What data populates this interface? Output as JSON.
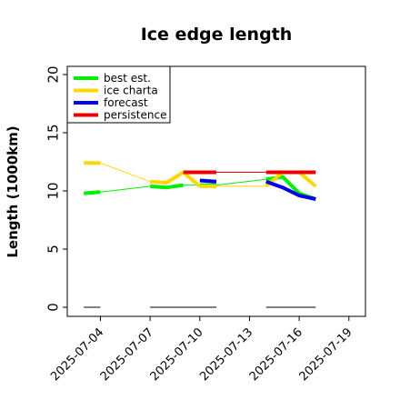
{
  "chart_data": {
    "type": "line",
    "title": "Ice edge length",
    "xlabel": "",
    "ylabel": "Length (1000km)",
    "ylim": [
      0,
      20
    ],
    "xlim": [
      "2025-07-02",
      "2025-07-20"
    ],
    "yticks": [
      "0",
      "5",
      "10",
      "15",
      "20"
    ],
    "xticks": [
      {
        "date": "2025-07-04",
        "label": "2025-07-04",
        "color": "#000000"
      },
      {
        "date": "2025-07-07",
        "label": "2025-07-07",
        "color": "#000000"
      },
      {
        "date": "2025-07-10",
        "label": "2025-07-10",
        "color": "#228b22"
      },
      {
        "date": "2025-07-13",
        "label": "2025-07-13",
        "color": "#000000"
      },
      {
        "date": "2025-07-16",
        "label": "2025-07-16",
        "color": "#000000"
      },
      {
        "date": "2025-07-19",
        "label": "2025-07-19",
        "color": "#000000"
      }
    ],
    "legend_position": "top-left",
    "grid": false,
    "series": [
      {
        "name": "best est.",
        "color": "#00ee00",
        "segments": [
          {
            "x": [
              "2025-07-03",
              "2025-07-04"
            ],
            "y": [
              9.8,
              9.9
            ],
            "width": "thick"
          },
          {
            "x": [
              "2025-07-04",
              "2025-07-07"
            ],
            "y": [
              9.9,
              10.4
            ],
            "width": "thin"
          },
          {
            "x": [
              "2025-07-07",
              "2025-07-08",
              "2025-07-09"
            ],
            "y": [
              10.4,
              10.3,
              10.5
            ],
            "width": "thick"
          },
          {
            "x": [
              "2025-07-09",
              "2025-07-10"
            ],
            "y": [
              10.5,
              10.5
            ],
            "width": "thin"
          },
          {
            "x": [
              "2025-07-10",
              "2025-07-11"
            ],
            "y": [
              10.5,
              10.5
            ],
            "width": "thick"
          },
          {
            "x": [
              "2025-07-11",
              "2025-07-14"
            ],
            "y": [
              10.5,
              11.0
            ],
            "width": "thin"
          },
          {
            "x": [
              "2025-07-14",
              "2025-07-15",
              "2025-07-16",
              "2025-07-17"
            ],
            "y": [
              11.0,
              11.2,
              9.8,
              9.3
            ],
            "width": "thick"
          }
        ]
      },
      {
        "name": "ice charta",
        "color": "#ffd700",
        "segments": [
          {
            "x": [
              "2025-07-03",
              "2025-07-04"
            ],
            "y": [
              12.4,
              12.4
            ],
            "width": "thick"
          },
          {
            "x": [
              "2025-07-04",
              "2025-07-07"
            ],
            "y": [
              12.4,
              10.8
            ],
            "width": "thin"
          },
          {
            "x": [
              "2025-07-07",
              "2025-07-08",
              "2025-07-09"
            ],
            "y": [
              10.8,
              10.7,
              11.6
            ],
            "width": "thick"
          },
          {
            "x": [
              "2025-07-09",
              "2025-07-10"
            ],
            "y": [
              11.6,
              10.4
            ],
            "width": "thick"
          },
          {
            "x": [
              "2025-07-10",
              "2025-07-11"
            ],
            "y": [
              10.4,
              10.4
            ],
            "width": "thick"
          },
          {
            "x": [
              "2025-07-11",
              "2025-07-14"
            ],
            "y": [
              10.4,
              10.4
            ],
            "width": "thin"
          },
          {
            "x": [
              "2025-07-14",
              "2025-07-15",
              "2025-07-16",
              "2025-07-17"
            ],
            "y": [
              10.4,
              11.6,
              11.6,
              10.4
            ],
            "width": "thick"
          }
        ]
      },
      {
        "name": "forecast",
        "color": "#0000ee",
        "segments": [
          {
            "x": [
              "2025-07-10",
              "2025-07-11"
            ],
            "y": [
              10.9,
              10.8
            ],
            "width": "thick"
          },
          {
            "x": [
              "2025-07-14",
              "2025-07-15",
              "2025-07-16",
              "2025-07-17"
            ],
            "y": [
              10.8,
              10.3,
              9.6,
              9.3
            ],
            "width": "thick"
          }
        ]
      },
      {
        "name": "persistence",
        "color": "#ee0000",
        "segments": [
          {
            "x": [
              "2025-07-09",
              "2025-07-11"
            ],
            "y": [
              11.6,
              11.6
            ],
            "width": "thick"
          },
          {
            "x": [
              "2025-07-11",
              "2025-07-14"
            ],
            "y": [
              11.6,
              11.6
            ],
            "width": "thin"
          },
          {
            "x": [
              "2025-07-14",
              "2025-07-17"
            ],
            "y": [
              11.6,
              11.6
            ],
            "width": "thick"
          }
        ]
      },
      {
        "color": "#808080",
        "segments": [
          {
            "x": [
              "2025-07-03",
              "2025-07-04"
            ],
            "y": [
              0,
              0
            ],
            "width": "medium"
          },
          {
            "x": [
              "2025-07-07",
              "2025-07-11"
            ],
            "y": [
              0,
              0
            ],
            "width": "medium"
          },
          {
            "x": [
              "2025-07-14",
              "2025-07-17"
            ],
            "y": [
              0,
              0
            ],
            "width": "medium"
          }
        ]
      }
    ]
  }
}
